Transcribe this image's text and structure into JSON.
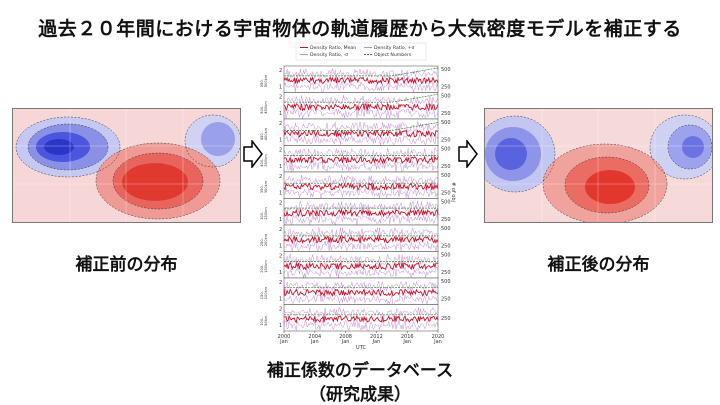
{
  "title": "過去２０年間における宇宙物体の軌道履歴から大気密度モデルを補正する",
  "left": {
    "label": "補正前の分布"
  },
  "right": {
    "label": "補正後の分布"
  },
  "caption": {
    "line1": "補正係数のデータベース",
    "line2": "（研究成果）"
  },
  "colors": {
    "mean": "#c8102e",
    "sigma": "#c58bd6",
    "objects": "#2e8b2e",
    "warm": "#e0332b",
    "cool": "#3340d8"
  },
  "chart_data": {
    "type": "line",
    "legend": [
      "Density Ratio, Mean",
      "Density Ratio, +σ",
      "Density Ratio, -σ",
      "Object Numbers"
    ],
    "x_ticks": [
      "2000\nJan",
      "2004\nJan",
      "2008\nJan",
      "2012\nJan",
      "2016\nJan",
      "2020\nJan"
    ],
    "xlabel": "UTC",
    "panels": [
      {
        "label": "550-\n500km",
        "right_ticks": [
          "500",
          "250"
        ]
      },
      {
        "label": "500-\n450km",
        "right_ticks": [
          "500",
          "250"
        ]
      },
      {
        "label": "450-\n400km",
        "right_ticks": [
          "500",
          "250"
        ]
      },
      {
        "label": "400-\n350km",
        "right_ticks": [
          "500",
          "250"
        ]
      },
      {
        "label": "350-\n300km",
        "right_ticks": [
          "500",
          "250"
        ]
      },
      {
        "label": "300-\n250km",
        "right_ticks": [
          "500",
          "250"
        ]
      },
      {
        "label": "250-\n200km",
        "right_ticks": [
          "500",
          "250"
        ]
      },
      {
        "label": "200-\n150km",
        "right_ticks": [
          "500",
          "250"
        ]
      },
      {
        "label": "150-\n100km",
        "right_ticks": [
          "500",
          "250"
        ]
      },
      {
        "label": "100-\n50km",
        "right_ticks": [
          "250"
        ]
      }
    ],
    "right_axis_label": "# of obj",
    "xlim": [
      2000,
      2020
    ]
  }
}
